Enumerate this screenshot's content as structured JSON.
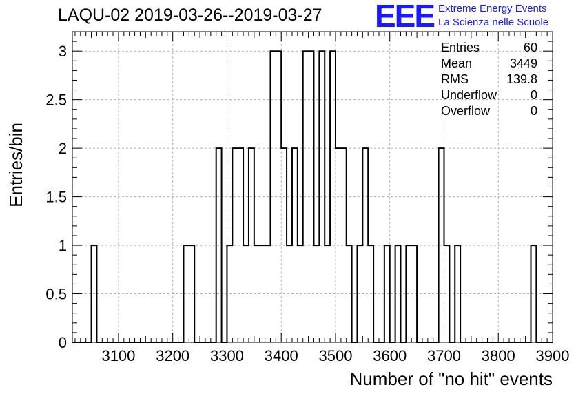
{
  "chart_data": {
    "type": "histogram",
    "title": "LAQU-02 2019-03-26--2019-03-27",
    "xlabel": "Number of \"no hit\" events",
    "ylabel": "Entries/bin",
    "xlim": [
      3015,
      3900
    ],
    "ylim": [
      0,
      3.2
    ],
    "x_ticks": [
      3100,
      3200,
      3300,
      3400,
      3500,
      3600,
      3700,
      3800,
      3900
    ],
    "y_ticks": [
      0,
      0.5,
      1,
      1.5,
      2,
      2.5,
      3
    ],
    "y_tick_labels": [
      "0",
      "0.5",
      "1",
      "1.5",
      "2",
      "2.5",
      "3"
    ],
    "grid": true,
    "bin_width": 10,
    "bins": [
      {
        "x0": 3050,
        "count": 1
      },
      {
        "x0": 3220,
        "count": 1
      },
      {
        "x0": 3230,
        "count": 1
      },
      {
        "x0": 3280,
        "count": 2
      },
      {
        "x0": 3300,
        "count": 1
      },
      {
        "x0": 3310,
        "count": 2
      },
      {
        "x0": 3320,
        "count": 2
      },
      {
        "x0": 3330,
        "count": 1
      },
      {
        "x0": 3340,
        "count": 2
      },
      {
        "x0": 3350,
        "count": 1
      },
      {
        "x0": 3360,
        "count": 1
      },
      {
        "x0": 3370,
        "count": 1
      },
      {
        "x0": 3380,
        "count": 3
      },
      {
        "x0": 3390,
        "count": 3
      },
      {
        "x0": 3400,
        "count": 2
      },
      {
        "x0": 3410,
        "count": 1
      },
      {
        "x0": 3420,
        "count": 2
      },
      {
        "x0": 3430,
        "count": 1
      },
      {
        "x0": 3440,
        "count": 3
      },
      {
        "x0": 3450,
        "count": 3
      },
      {
        "x0": 3460,
        "count": 1
      },
      {
        "x0": 3470,
        "count": 3
      },
      {
        "x0": 3480,
        "count": 1
      },
      {
        "x0": 3490,
        "count": 3
      },
      {
        "x0": 3500,
        "count": 2
      },
      {
        "x0": 3510,
        "count": 2
      },
      {
        "x0": 3520,
        "count": 1
      },
      {
        "x0": 3540,
        "count": 1
      },
      {
        "x0": 3550,
        "count": 2
      },
      {
        "x0": 3560,
        "count": 1
      },
      {
        "x0": 3590,
        "count": 1
      },
      {
        "x0": 3610,
        "count": 1
      },
      {
        "x0": 3630,
        "count": 1
      },
      {
        "x0": 3640,
        "count": 1
      },
      {
        "x0": 3690,
        "count": 2
      },
      {
        "x0": 3700,
        "count": 1
      },
      {
        "x0": 3720,
        "count": 1
      },
      {
        "x0": 3860,
        "count": 1
      }
    ],
    "stats": [
      {
        "label": "Entries",
        "value": "60"
      },
      {
        "label": "Mean",
        "value": "3449"
      },
      {
        "label": "RMS",
        "value": "139.8"
      },
      {
        "label": "Underflow",
        "value": "0"
      },
      {
        "label": "Overflow",
        "value": "0"
      }
    ]
  },
  "logo": {
    "mark": "EEE",
    "line1": "Extreme Energy Events",
    "line2": "La Scienza nelle Scuole",
    "color": "#1a1aff"
  }
}
